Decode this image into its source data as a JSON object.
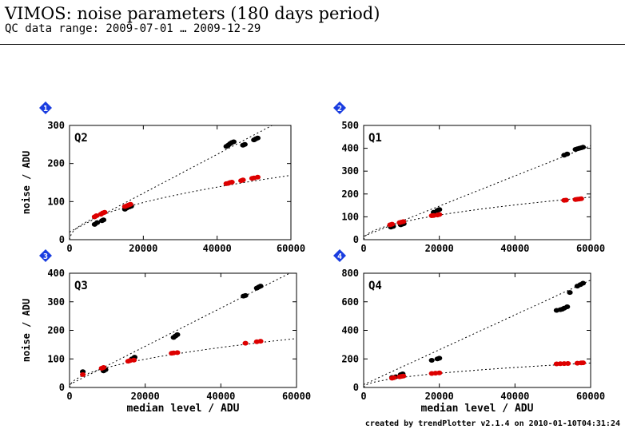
{
  "header": {
    "title": "VIMOS: noise parameters (180 days period)",
    "subtitle": "QC data range: 2009-07-01 … 2009-12-29"
  },
  "footer": {
    "text": "created by trendPlotter v2.1.4 on 2010-01-10T04:31:24"
  },
  "colors": {
    "marker_icon": "#1a3de0",
    "black_series": "#000000",
    "red_series": "#dd0000"
  },
  "chart_data": [
    {
      "type": "scatter",
      "badge": "1",
      "quadrant": "Q2",
      "ylabel": "noise / ADU",
      "xlabel": "",
      "xlim": [
        0,
        60000
      ],
      "ylim": [
        0,
        300
      ],
      "xticks": [
        0,
        20000,
        40000,
        60000
      ],
      "yticks": [
        0,
        100,
        200,
        300
      ],
      "series": [
        {
          "color": "black",
          "points": [
            [
              6800,
              40
            ],
            [
              7500,
              45
            ],
            [
              8800,
              50
            ],
            [
              9200,
              52
            ],
            [
              15000,
              80
            ],
            [
              15500,
              83
            ],
            [
              16200,
              86
            ],
            [
              16700,
              88
            ],
            [
              42500,
              245
            ],
            [
              43000,
              248
            ],
            [
              43500,
              252
            ],
            [
              44000,
              255
            ],
            [
              44500,
              257
            ],
            [
              47000,
              248
            ],
            [
              47500,
              250
            ],
            [
              50000,
              262
            ],
            [
              50500,
              265
            ],
            [
              51000,
              267
            ]
          ]
        },
        {
          "color": "red",
          "points": [
            [
              6800,
              60
            ],
            [
              7300,
              63
            ],
            [
              8500,
              67
            ],
            [
              9000,
              70
            ],
            [
              9500,
              72
            ],
            [
              15000,
              87
            ],
            [
              15500,
              89
            ],
            [
              16000,
              91
            ],
            [
              16500,
              93
            ],
            [
              42500,
              147
            ],
            [
              43000,
              148
            ],
            [
              43500,
              150
            ],
            [
              44000,
              151
            ],
            [
              46500,
              155
            ],
            [
              47000,
              157
            ],
            [
              49500,
              161
            ],
            [
              50000,
              162
            ],
            [
              51000,
              164
            ]
          ]
        }
      ],
      "fits": [
        {
          "curve": "linear",
          "a": 20,
          "b": 0.0051
        },
        {
          "curve": "sqrt",
          "c": 0.69
        }
      ]
    },
    {
      "type": "scatter",
      "badge": "2",
      "quadrant": "Q1",
      "ylabel": "",
      "xlabel": "",
      "xlim": [
        0,
        60000
      ],
      "ylim": [
        0,
        500
      ],
      "xticks": [
        0,
        20000,
        40000,
        60000
      ],
      "yticks": [
        0,
        100,
        200,
        300,
        400,
        500
      ],
      "series": [
        {
          "color": "black",
          "points": [
            [
              7200,
              55
            ],
            [
              7800,
              58
            ],
            [
              9800,
              65
            ],
            [
              10200,
              68
            ],
            [
              10600,
              70
            ],
            [
              18500,
              120
            ],
            [
              19500,
              128
            ],
            [
              20000,
              132
            ],
            [
              53000,
              370
            ],
            [
              53800,
              375
            ],
            [
              56000,
              395
            ],
            [
              56500,
              398
            ],
            [
              57000,
              400
            ],
            [
              57500,
              402
            ],
            [
              58000,
              405
            ]
          ]
        },
        {
          "color": "red",
          "points": [
            [
              7000,
              65
            ],
            [
              7500,
              68
            ],
            [
              9500,
              75
            ],
            [
              10000,
              77
            ],
            [
              10500,
              79
            ],
            [
              18000,
              105
            ],
            [
              18500,
              106
            ],
            [
              19500,
              108
            ],
            [
              20000,
              110
            ],
            [
              53000,
              172
            ],
            [
              53500,
              173
            ],
            [
              56000,
              176
            ],
            [
              56500,
              177
            ],
            [
              57000,
              178
            ],
            [
              57500,
              179
            ]
          ]
        }
      ],
      "fits": [
        {
          "curve": "linear",
          "a": 15,
          "b": 0.0066
        },
        {
          "curve": "sqrt",
          "c": 0.76
        }
      ]
    },
    {
      "type": "scatter",
      "badge": "3",
      "quadrant": "Q3",
      "ylabel": "noise / ADU",
      "xlabel": "median level / ADU",
      "xlim": [
        0,
        60000
      ],
      "ylim": [
        0,
        400
      ],
      "xticks": [
        0,
        20000,
        40000,
        60000
      ],
      "yticks": [
        0,
        100,
        200,
        300,
        400
      ],
      "series": [
        {
          "color": "black",
          "points": [
            [
              3500,
              55
            ],
            [
              9000,
              58
            ],
            [
              9500,
              62
            ],
            [
              16500,
              100
            ],
            [
              17000,
              103
            ],
            [
              17200,
              106
            ],
            [
              27500,
              175
            ],
            [
              28000,
              180
            ],
            [
              28500,
              185
            ],
            [
              46000,
              320
            ],
            [
              46500,
              322
            ],
            [
              49500,
              348
            ],
            [
              50000,
              352
            ],
            [
              50500,
              355
            ]
          ]
        },
        {
          "color": "red",
          "points": [
            [
              3500,
              45
            ],
            [
              8500,
              67
            ],
            [
              9000,
              70
            ],
            [
              15500,
              92
            ],
            [
              16000,
              94
            ],
            [
              17000,
              96
            ],
            [
              27000,
              120
            ],
            [
              27500,
              121
            ],
            [
              28500,
              122
            ],
            [
              46500,
              155
            ],
            [
              49500,
              160
            ],
            [
              50500,
              162
            ]
          ]
        }
      ],
      "fits": [
        {
          "curve": "linear",
          "a": 10,
          "b": 0.0067
        },
        {
          "curve": "sqrt",
          "c": 0.7
        }
      ]
    },
    {
      "type": "scatter",
      "badge": "4",
      "quadrant": "Q4",
      "ylabel": "",
      "xlabel": "median level / ADU",
      "xlim": [
        0,
        60000
      ],
      "ylim": [
        0,
        800
      ],
      "xticks": [
        0,
        20000,
        40000,
        60000
      ],
      "yticks": [
        0,
        200,
        400,
        600,
        800
      ],
      "series": [
        {
          "color": "black",
          "points": [
            [
              7500,
              70
            ],
            [
              8500,
              75
            ],
            [
              9800,
              90
            ],
            [
              10300,
              95
            ],
            [
              18000,
              190
            ],
            [
              19500,
              200
            ],
            [
              20000,
              205
            ],
            [
              51000,
              540
            ],
            [
              52000,
              545
            ],
            [
              52500,
              548
            ],
            [
              53000,
              555
            ],
            [
              53800,
              565
            ],
            [
              54500,
              665
            ],
            [
              56500,
              710
            ],
            [
              57300,
              720
            ],
            [
              58000,
              730
            ]
          ]
        },
        {
          "color": "red",
          "points": [
            [
              7500,
              65
            ],
            [
              8000,
              68
            ],
            [
              9500,
              75
            ],
            [
              10000,
              78
            ],
            [
              10500,
              80
            ],
            [
              18000,
              98
            ],
            [
              19000,
              100
            ],
            [
              20000,
              102
            ],
            [
              51000,
              165
            ],
            [
              52000,
              166
            ],
            [
              53000,
              167
            ],
            [
              54000,
              168
            ],
            [
              56500,
              170
            ],
            [
              57500,
              172
            ],
            [
              58000,
              173
            ]
          ]
        }
      ],
      "fits": [
        {
          "curve": "linear",
          "a": 20,
          "b": 0.0122
        },
        {
          "curve": "sqrt",
          "c": 0.7
        }
      ]
    }
  ]
}
